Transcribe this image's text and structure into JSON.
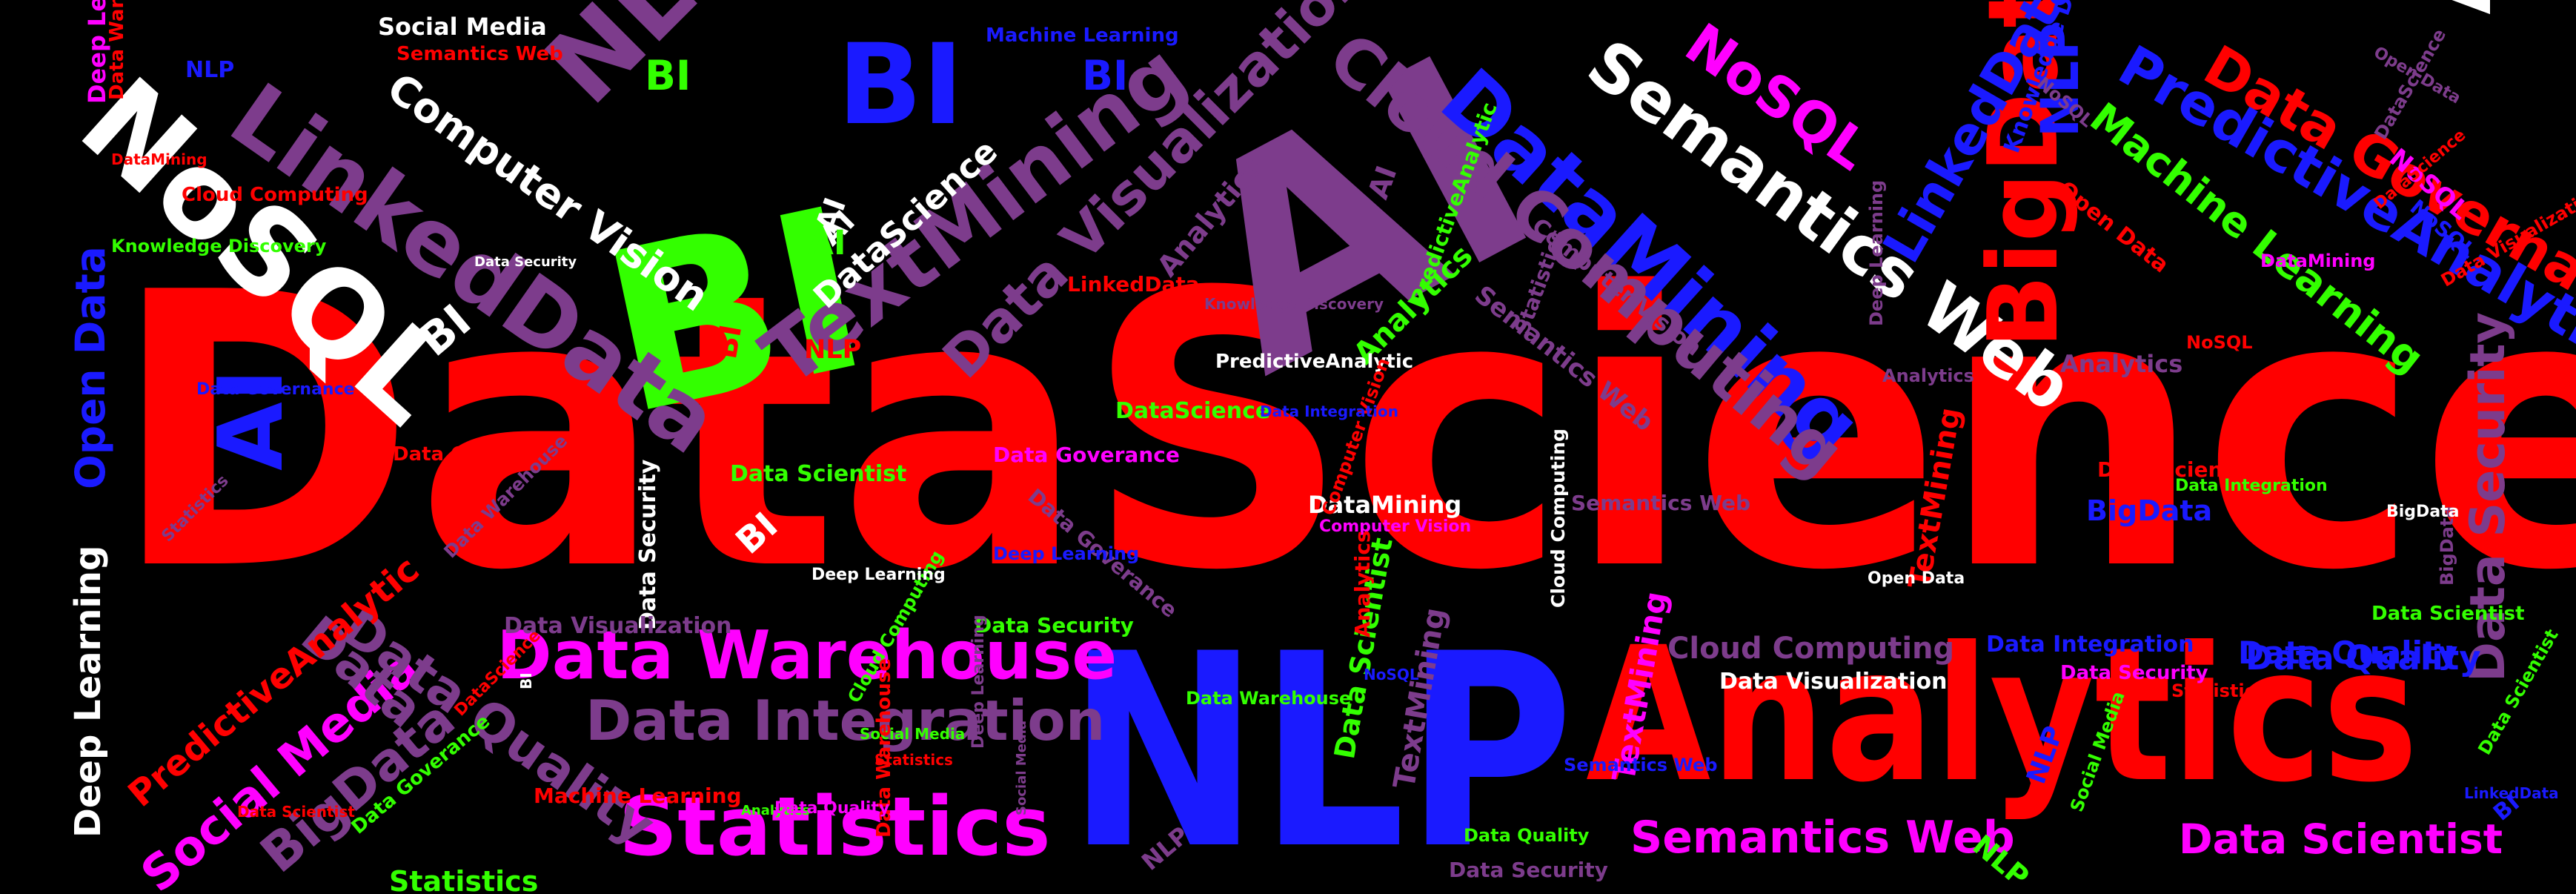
{
  "colors": {
    "background": "#000000",
    "red": "#ff0000",
    "blue": "#1a1aff",
    "green": "#33ff00",
    "magenta": "#ff00ff",
    "purple": "#7d3c8c",
    "white": "#ffffff"
  },
  "words": [
    {
      "text": "DataScience",
      "color": "red"
    },
    {
      "text": "NLP",
      "color": "blue"
    },
    {
      "text": "Analytics",
      "color": "red"
    },
    {
      "text": "AI",
      "color": "purple"
    },
    {
      "text": "BI",
      "color": "green"
    },
    {
      "text": "NoSQL",
      "color": "white"
    },
    {
      "text": "BI",
      "color": "blue"
    },
    {
      "text": "AI",
      "color": "white"
    },
    {
      "text": "LinkedData",
      "color": "purple"
    },
    {
      "text": "NLP",
      "color": "purple"
    },
    {
      "text": "TextMining",
      "color": "purple"
    },
    {
      "text": "DataMining",
      "color": "blue"
    },
    {
      "text": "Semantics Web",
      "color": "white"
    },
    {
      "text": "Cloud Computing",
      "color": "purple"
    },
    {
      "text": "BigData",
      "color": "red"
    },
    {
      "text": "Statistics",
      "color": "magenta"
    },
    {
      "text": "Data Warehouse",
      "color": "magenta"
    },
    {
      "text": "Data Integration",
      "color": "purple"
    },
    {
      "text": "Semantics Web",
      "color": "magenta"
    },
    {
      "text": "Data Scientist",
      "color": "magenta"
    },
    {
      "text": "Data Governance",
      "color": "red"
    },
    {
      "text": "PredictiveAnalytic",
      "color": "blue"
    },
    {
      "text": "Machine Learning",
      "color": "green"
    },
    {
      "text": "Data Visualization",
      "color": "purple"
    },
    {
      "text": "Computer Vision",
      "color": "white"
    },
    {
      "text": "NoSQL",
      "color": "magenta"
    },
    {
      "text": "LinkedData",
      "color": "blue"
    },
    {
      "text": "NLP",
      "color": "blue"
    },
    {
      "text": "Data Security",
      "color": "purple"
    },
    {
      "text": "Data Quality",
      "color": "blue"
    },
    {
      "text": "Deep Learning",
      "color": "white"
    },
    {
      "text": "Open Data",
      "color": "blue"
    },
    {
      "text": "AI",
      "color": "blue"
    },
    {
      "text": "Social Media",
      "color": "magenta"
    },
    {
      "text": "BigData",
      "color": "purple"
    },
    {
      "text": "Data Quality",
      "color": "purple"
    },
    {
      "text": "Data",
      "color": "purple"
    },
    {
      "text": "PredictiveAnalytic",
      "color": "red"
    },
    {
      "text": "Cloud Computing",
      "color": "purple"
    },
    {
      "text": "Data Integration",
      "color": "blue"
    },
    {
      "text": "Data Visualization",
      "color": "white"
    },
    {
      "text": "Data Security",
      "color": "magenta"
    },
    {
      "text": "Data Quality",
      "color": "blue"
    },
    {
      "text": "DataMining",
      "color": "white"
    },
    {
      "text": "Computer Vision",
      "color": "magenta"
    },
    {
      "text": "BigData",
      "color": "blue"
    },
    {
      "text": "Data Scientist",
      "color": "red"
    },
    {
      "text": "TextMining",
      "color": "red"
    },
    {
      "text": "TextMining",
      "color": "magenta"
    },
    {
      "text": "TextMining",
      "color": "purple"
    },
    {
      "text": "Data Scientist",
      "color": "green"
    },
    {
      "text": "DataScience",
      "color": "green"
    },
    {
      "text": "Data Scientist",
      "color": "green"
    },
    {
      "text": "Data Security",
      "color": "white"
    },
    {
      "text": "Cloud Computing",
      "color": "white"
    },
    {
      "text": "Data Security",
      "color": "purple"
    },
    {
      "text": "Statistics",
      "color": "green"
    },
    {
      "text": "Data Quality",
      "color": "green"
    },
    {
      "text": "Analytics",
      "color": "purple"
    },
    {
      "text": "Analytics",
      "color": "green"
    },
    {
      "text": "Analytics",
      "color": "purple"
    },
    {
      "text": "LinkedData",
      "color": "red"
    },
    {
      "text": "DataScience",
      "color": "white"
    },
    {
      "text": "AI",
      "color": "white"
    },
    {
      "text": "BI",
      "color": "white"
    },
    {
      "text": "BI",
      "color": "white"
    },
    {
      "text": "BI",
      "color": "red"
    },
    {
      "text": "BI",
      "color": "green"
    },
    {
      "text": "BI",
      "color": "blue"
    },
    {
      "text": "AI",
      "color": "green"
    },
    {
      "text": "AI",
      "color": "white"
    },
    {
      "text": "AI",
      "color": "purple"
    },
    {
      "text": "NLP",
      "color": "blue"
    },
    {
      "text": "NLP",
      "color": "red"
    },
    {
      "text": "NLP",
      "color": "purple"
    },
    {
      "text": "NLP",
      "color": "green"
    },
    {
      "text": "Social Media",
      "color": "white"
    },
    {
      "text": "Semantics Web",
      "color": "red"
    },
    {
      "text": "Machine Learning",
      "color": "blue"
    },
    {
      "text": "Deep Learning",
      "color": "magenta"
    },
    {
      "text": "Data Warehouse",
      "color": "red"
    },
    {
      "text": "DataMining",
      "color": "red"
    },
    {
      "text": "Cloud Computing",
      "color": "red"
    },
    {
      "text": "Knowledge Discovery",
      "color": "green"
    },
    {
      "text": "Knowledge Discovery",
      "color": "blue"
    },
    {
      "text": "NoSQL",
      "color": "red"
    },
    {
      "text": "NoSQL",
      "color": "magenta"
    },
    {
      "text": "NoSQL",
      "color": "blue"
    },
    {
      "text": "NoSQL",
      "color": "purple"
    },
    {
      "text": "Data Goverance",
      "color": "red"
    },
    {
      "text": "Open Data",
      "color": "purple"
    },
    {
      "text": "Open Data",
      "color": "red"
    },
    {
      "text": "DataMining",
      "color": "magenta"
    },
    {
      "text": "Analytics",
      "color": "purple"
    },
    {
      "text": "Semantics Web",
      "color": "purple"
    },
    {
      "text": "Computer Vision",
      "color": "purple"
    },
    {
      "text": "Statistics",
      "color": "purple"
    },
    {
      "text": "PredictiveAnalytic",
      "color": "white"
    },
    {
      "text": "PredictiveAnalytic",
      "color": "green"
    },
    {
      "text": "Data Goverance",
      "color": "magenta"
    },
    {
      "text": "Data Goverance",
      "color": "purple"
    },
    {
      "text": "Data Goverance",
      "color": "green"
    },
    {
      "text": "Data Governance",
      "color": "blue"
    },
    {
      "text": "Data Scientist",
      "color": "red"
    },
    {
      "text": "Data Integration",
      "color": "green"
    },
    {
      "text": "Deep Learning",
      "color": "blue"
    },
    {
      "text": "Semantics Web",
      "color": "purple"
    },
    {
      "text": "Data Warehouse",
      "color": "green"
    },
    {
      "text": "Data Security",
      "color": "green"
    },
    {
      "text": "Data Visualization",
      "color": "purple"
    },
    {
      "text": "Computer Vision",
      "color": "red"
    },
    {
      "text": "Machine Learning",
      "color": "red"
    },
    {
      "text": "Cloud Computing",
      "color": "green"
    },
    {
      "text": "Analytics",
      "color": "green"
    },
    {
      "text": "Statistics",
      "color": "red"
    },
    {
      "text": "Analytics",
      "color": "red"
    },
    {
      "text": "Data Warehouse",
      "color": "purple"
    },
    {
      "text": "Data Scientist",
      "color": "green"
    },
    {
      "text": "BigData",
      "color": "purple"
    },
    {
      "text": "BigData",
      "color": "white"
    },
    {
      "text": "Open Data",
      "color": "white"
    },
    {
      "text": "DataScience",
      "color": "purple"
    },
    {
      "text": "DataScience",
      "color": "red"
    },
    {
      "text": "Social Media",
      "color": "green"
    },
    {
      "text": "Deep Learning",
      "color": "purple"
    },
    {
      "text": "Data Visualization",
      "color": "red"
    },
    {
      "text": "Data Integration",
      "color": "blue"
    },
    {
      "text": "NoSQL",
      "color": "blue"
    },
    {
      "text": "BI",
      "color": "blue"
    },
    {
      "text": "NLP",
      "color": "blue"
    },
    {
      "text": "Data Warehouse",
      "color": "red"
    },
    {
      "text": "Deep Learning",
      "color": "white"
    },
    {
      "text": "Semantics Web",
      "color": "blue"
    },
    {
      "text": "DataScience",
      "color": "red"
    },
    {
      "text": "Knowledge Discovery",
      "color": "purple"
    },
    {
      "text": "Social Media",
      "color": "green"
    },
    {
      "text": "LinkedData",
      "color": "blue"
    },
    {
      "text": "Data Quality",
      "color": "magenta"
    },
    {
      "text": "Data Scientist",
      "color": "green"
    },
    {
      "text": "Data Security",
      "color": "white"
    },
    {
      "text": "BI",
      "color": "white"
    },
    {
      "text": "Statistics",
      "color": "purple"
    },
    {
      "text": "Deep Learning",
      "color": "purple"
    },
    {
      "text": "Social Media",
      "color": "purple"
    },
    {
      "text": "Statistics",
      "color": "red"
    },
    {
      "text": "Open Data",
      "color": "green"
    }
  ]
}
